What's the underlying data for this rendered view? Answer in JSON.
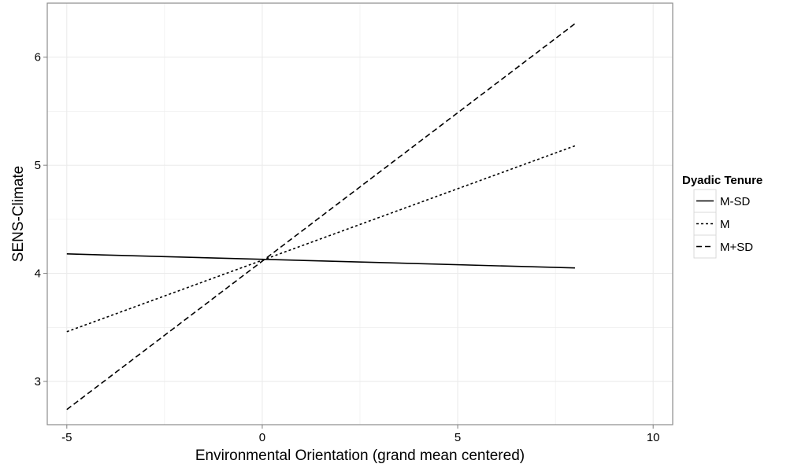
{
  "chart_data": {
    "type": "line",
    "xlabel": "Environmental Orientation (grand mean centered)",
    "ylabel": "SENS-Climate",
    "xlim": [
      -5.5,
      10.5
    ],
    "ylim": [
      2.6,
      6.5
    ],
    "x_ticks": [
      -5,
      0,
      5,
      10
    ],
    "x_tick_labels": [
      "-5",
      "0",
      "5",
      "10"
    ],
    "y_ticks": [
      3,
      4,
      5,
      6
    ],
    "y_tick_labels": [
      "3",
      "4",
      "5",
      "6"
    ],
    "grid": true,
    "legend": {
      "title": "Dyadic Tenure",
      "position": "right"
    },
    "series": [
      {
        "name": "M-SD",
        "line_style": "solid",
        "x": [
          -5,
          8
        ],
        "y": [
          4.18,
          4.05
        ]
      },
      {
        "name": "M",
        "line_style": "dotted",
        "x": [
          -5,
          8
        ],
        "y": [
          3.46,
          5.18
        ]
      },
      {
        "name": "M+SD",
        "line_style": "dashed",
        "x": [
          -5,
          8
        ],
        "y": [
          2.74,
          6.31
        ]
      }
    ]
  },
  "colors": {
    "panel_border": "#8c8c8c",
    "grid": "#ebebeb",
    "line": "#000000"
  }
}
